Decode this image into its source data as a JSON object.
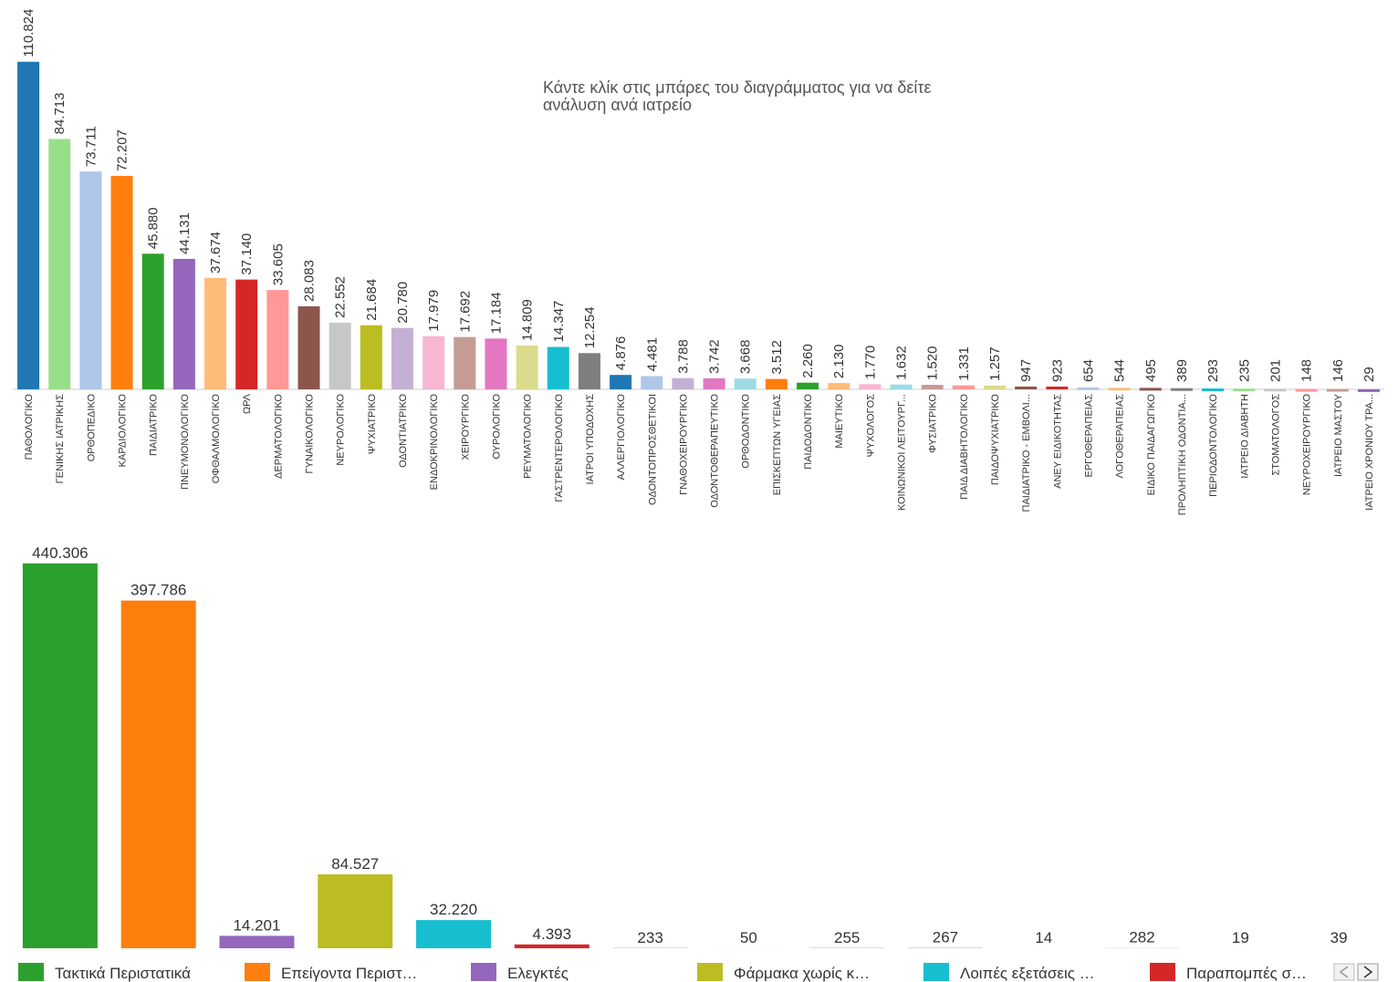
{
  "chart_data": [
    {
      "type": "bar",
      "annotation": [
        "Κάντε κλίκ στις μπάρες του διαγράμματος για να δείτε",
        "ανάλυση ανά ιατρείο"
      ],
      "categories": [
        "ΠΑΘΟΛΟΓΙΚΟ",
        "ΓΕΝΙΚΗΣ ΙΑΤΡΙΚΗΣ",
        "ΟΡΘΟΠΕΔΙΚΟ",
        "ΚΑΡΔΙΟΛΟΓΙΚΟ",
        "ΠΑΙΔΙΑΤΡΙΚΟ",
        "ΠΝΕΥΜΟΝΟΛΟΓΙΚΟ",
        "ΟΦΘΑΛΜΟΛΟΓΙΚΟ",
        "ΩΡΛ",
        "ΔΕΡΜΑΤΟΛΟΓΙΚΟ",
        "ΓΥΝΑΙΚΟΛΟΓΙΚΟ",
        "ΝΕΥΡΟΛΟΓΙΚΟ",
        "ΨΥΧΙΑΤΡΙΚΟ",
        "ΟΔΟΝΤΙΑΤΡΙΚΟ",
        "ΕΝΔΟΚΡΙΝΟΛΟΓΙΚΟ",
        "ΧΕΙΡΟΥΡΓΙΚΟ",
        "ΟΥΡΟΛΟΓΙΚΟ",
        "ΡΕΥΜΑΤΟΛΟΓΙΚΟ",
        "ΓΑΣΤΡΕΝΤΕΡΟΛΟΓΙΚΟ",
        "ΙΑΤΡΟΙ ΥΠΟΔΟΧΗΣ",
        "ΑΛΛΕΡΓΙΟΛΟΓΙΚΟ",
        "ΟΔΟΝΤΟΠΡΟΣΘΕΤΙΚΟΙ",
        "ΓΝΑΘΟΧΕΙΡΟΥΡΓΙΚΟ",
        "ΟΔΟΝΤΟΘΕΡΑΠΕΥΤΙΚΟ",
        "ΟΡΘΟΔΟΝΤΙΚΟ",
        "ΕΠΙΣΚΕΠΤΩΝ ΥΓΕΙΑΣ",
        "ΠΑΙΔΟΔΟΝΤΙΚΟ",
        "ΜΑΙΕΥΤΙΚΟ",
        "ΨΥΧΟΛΟΓΟΣ",
        "ΚΟΙΝΩΝΙΚΟΙ ΛΕΙΤΟΥΡΓ...",
        "ΦΥΣΙΑΤΡΙΚΟ",
        "ΠΑΙΔ ΔΙΑΒΗΤΟΛΟΓΙΚΟ",
        "ΠΑΙΔΟΨΥΧΙΑΤΡΙΚΟ",
        "ΠΑΙΔΙΑΤΡΙΚΟ - ΕΜΒΟΛΙ...",
        "ΑΝΕΥ ΕΙΔΙΚΟΤΗΤΑΣ",
        "ΕΡΓΟΘΕΡΑΠΕΙΑΣ",
        "ΛΟΓΟΘΕΡΑΠΕΙΑΣ",
        "ΕΙΔΙΚΟ ΠΑΙΔΑΓΩΓΙΚΟ",
        "ΠΡΟΛΗΠΤΙΚΗ ΟΔΟΝΤΙΑ...",
        "ΠΕΡΙΟΔΟΝΤΟΛΟΓΙΚΟ",
        "ΙΑΤΡΕΙΟ ΔΙΑΒΗΤΗ",
        "ΣΤΟΜΑΤΟΛΟΓΟΣ",
        "ΝΕΥΡΟΧΕΙΡΟΥΡΓΙΚΟ",
        "ΙΑΤΡΕΙΟ ΜΑΣΤΟΥ",
        "ΙΑΤΡΕΙΟ ΧΡΟΝΙΟΥ ΤΡΑ..."
      ],
      "values": [
        110824,
        84713,
        73711,
        72207,
        45880,
        44131,
        37674,
        37140,
        33605,
        28083,
        22552,
        21684,
        20780,
        17979,
        17692,
        17184,
        14809,
        14347,
        12254,
        4876,
        4481,
        3788,
        3742,
        3668,
        3512,
        2260,
        2130,
        1770,
        1632,
        1520,
        1331,
        1257,
        947,
        923,
        654,
        544,
        495,
        389,
        293,
        235,
        201,
        148,
        146,
        29
      ],
      "value_labels": [
        "110.824",
        "84.713",
        "73.711",
        "72.207",
        "45.880",
        "44.131",
        "37.674",
        "37.140",
        "33.605",
        "28.083",
        "22.552",
        "21.684",
        "20.780",
        "17.979",
        "17.692",
        "17.184",
        "14.809",
        "14.347",
        "12.254",
        "4.876",
        "4.481",
        "3.788",
        "3.742",
        "3.668",
        "3.512",
        "2.260",
        "2.130",
        "1.770",
        "1.632",
        "1.520",
        "1.331",
        "1.257",
        "947",
        "923",
        "654",
        "544",
        "495",
        "389",
        "293",
        "235",
        "201",
        "148",
        "146",
        "29"
      ],
      "colors": [
        "#1f77b4",
        "#98df8a",
        "#aec7e8",
        "#ff7f0e",
        "#2ca02c",
        "#9467bd",
        "#ffbb78",
        "#d62728",
        "#ff9896",
        "#8c564b",
        "#c7c7c7",
        "#bcbd22",
        "#c5b0d5",
        "#f7b6d2",
        "#c49c94",
        "#e377c2",
        "#dbdb8d",
        "#17becf",
        "#7f7f7f",
        "#1f77b4",
        "#aec7e8",
        "#c5b0d5",
        "#e377c2",
        "#9edae5",
        "#ff7f0e",
        "#2ca02c",
        "#ffbb78",
        "#f7b6d2",
        "#9edae5",
        "#c49c94",
        "#ff9896",
        "#dbdb8d",
        "#8c564b",
        "#d62728",
        "#aec7e8",
        "#ffbb78",
        "#8c564b",
        "#7f7f7f",
        "#17becf",
        "#98df8a",
        "#c7c7c7",
        "#ff9896",
        "#c49c94",
        "#9467bd"
      ],
      "ylim": [
        0,
        120000
      ]
    },
    {
      "type": "bar",
      "categories": [
        "Τακτικά Περιστατικά",
        "Επείγοντα Περιστ…",
        "Ελεγκτές",
        "Φάρμακα χωρίς κ…",
        "Λοιπές εξετάσεις …",
        "Παραπομπές σ…",
        null,
        null,
        null,
        null,
        null,
        null,
        null,
        null
      ],
      "values": [
        440306,
        397786,
        14201,
        84527,
        32220,
        4393,
        233,
        50,
        255,
        267,
        14,
        282,
        19,
        39
      ],
      "value_labels": [
        "440.306",
        "397.786",
        "14.201",
        "84.527",
        "32.220",
        "4.393",
        "233",
        "50",
        "255",
        "267",
        "14",
        "282",
        "19",
        "39"
      ],
      "colors": [
        "#2ca02c",
        "#ff7f0e",
        "#9467bd",
        "#bcbd22",
        "#17becf",
        "#d62728",
        "#8c564b",
        "#e377c2",
        "#7f7f7f",
        "#1f77b4",
        "#aec7e8",
        "#ffbb78",
        "#98df8a",
        "#ff9896"
      ],
      "ylim": [
        0,
        460000
      ],
      "legend": "bottom"
    }
  ]
}
